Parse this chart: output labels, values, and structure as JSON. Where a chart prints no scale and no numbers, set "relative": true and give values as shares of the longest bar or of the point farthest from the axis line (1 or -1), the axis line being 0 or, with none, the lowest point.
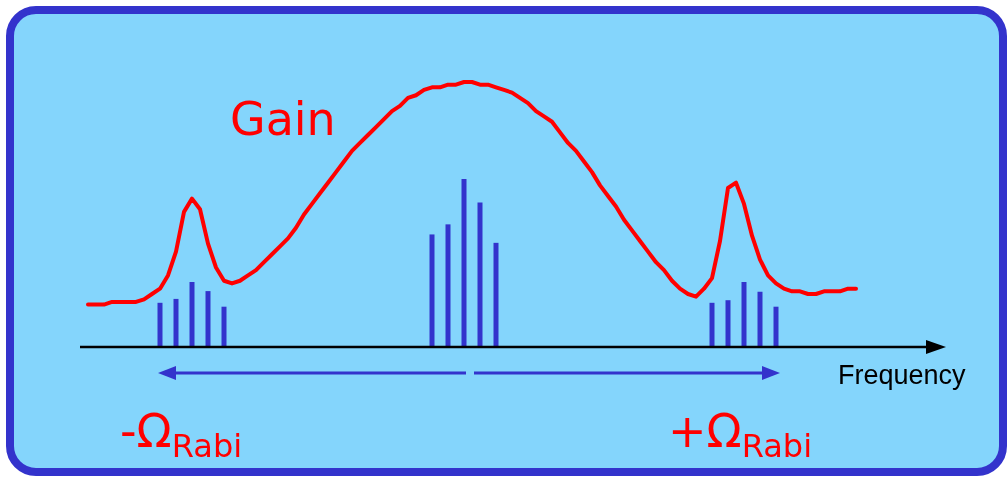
{
  "chart_data": [
    {
      "type": "line",
      "relative": true,
      "xlabel": "Frequency",
      "tick_labels": false,
      "annotations": [
        "-Ω$_{Rabi}$",
        "+Ω$_{Rabi}$"
      ],
      "categories": [
        null,
        null,
        null,
        null,
        null,
        null,
        null,
        null,
        null,
        null,
        null,
        null,
        null,
        null,
        null,
        null,
        null,
        null,
        null,
        null,
        null,
        null,
        null,
        null,
        null,
        null,
        null,
        null,
        null,
        null,
        null,
        null,
        null,
        null,
        null,
        null,
        null,
        null,
        null,
        null,
        null,
        null,
        null,
        null,
        null,
        null,
        null,
        null,
        null,
        null,
        null,
        null,
        null,
        null,
        null,
        null,
        null,
        null,
        null,
        null,
        null,
        null,
        null,
        null,
        null,
        null,
        null,
        null,
        null,
        null,
        null,
        null,
        null,
        null,
        null,
        null,
        null,
        null,
        null,
        null,
        null,
        null,
        null,
        null,
        null,
        null,
        null,
        null,
        null,
        null,
        null,
        null,
        null,
        null,
        null,
        null,
        null
      ],
      "series": [
        {
          "name": "Gain",
          "color": "#ff0000",
          "values": [
            0.16,
            0.16,
            0.16,
            0.17,
            0.17,
            0.17,
            0.17,
            0.18,
            0.2,
            0.22,
            0.27,
            0.36,
            0.51,
            0.56,
            0.52,
            0.39,
            0.3,
            0.25,
            0.24,
            0.25,
            0.27,
            0.29,
            0.32,
            0.35,
            0.38,
            0.41,
            0.45,
            0.5,
            0.54,
            0.58,
            0.62,
            0.66,
            0.7,
            0.74,
            0.77,
            0.8,
            0.83,
            0.86,
            0.89,
            0.91,
            0.94,
            0.95,
            0.97,
            0.98,
            0.98,
            0.99,
            0.99,
            1,
            1,
            0.99,
            0.99,
            0.98,
            0.97,
            0.96,
            0.94,
            0.92,
            0.89,
            0.87,
            0.85,
            0.81,
            0.77,
            0.74,
            0.7,
            0.66,
            0.61,
            0.57,
            0.53,
            0.48,
            0.44,
            0.4,
            0.36,
            0.32,
            0.29,
            0.25,
            0.22,
            0.2,
            0.19,
            0.22,
            0.26,
            0.4,
            0.6,
            0.62,
            0.54,
            0.42,
            0.33,
            0.27,
            0.24,
            0.22,
            0.21,
            0.21,
            0.2,
            0.2,
            0.21,
            0.21,
            0.21,
            0.22,
            0.22
          ]
        }
      ]
    },
    {
      "type": "bar",
      "relative": true,
      "tick_labels": false,
      "categories": [
        null,
        null,
        null,
        null,
        null
      ],
      "series": [
        {
          "color": "#3333cc",
          "values": [
            0.68,
            0.74,
            1,
            0.86,
            0.62
          ]
        }
      ]
    },
    {
      "type": "bar",
      "relative": true,
      "tick_labels": false,
      "categories": [
        null,
        null,
        null,
        null,
        null
      ],
      "series": [
        {
          "color": "#3333cc",
          "values": [
            0.67,
            0.73,
            1,
            0.86,
            0.62
          ]
        }
      ]
    },
    {
      "type": "bar",
      "relative": true,
      "tick_labels": false,
      "categories": [
        null,
        null,
        null,
        null,
        null
      ],
      "series": [
        {
          "color": "#3333cc",
          "values": [
            0.68,
            0.72,
            1,
            0.85,
            0.62
          ]
        }
      ]
    }
  ]
}
